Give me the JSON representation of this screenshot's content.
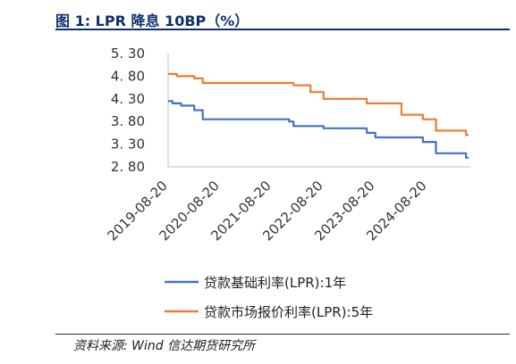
{
  "title": "图 1:  LPR 降息 10BP（%）",
  "source": "资料来源:    Wind  信达期货研究所",
  "chart_data": {
    "type": "line",
    "title": "LPR 降息 10BP（%）",
    "xlabel": "",
    "ylabel": "",
    "ylim": [
      2.8,
      5.3
    ],
    "yticks": [
      2.8,
      3.3,
      3.8,
      4.3,
      4.8,
      5.3
    ],
    "ytick_labels": [
      "2. 80",
      "3. 30",
      "3. 80",
      "4. 30",
      "4. 80",
      "5. 30"
    ],
    "xlim": [
      "2019-08-20",
      "2025-06-20"
    ],
    "xtick_labels": [
      "2019-08-20",
      "2020-08-20",
      "2021-08-20",
      "2022-08-20",
      "2023-08-20",
      "2024-08-20"
    ],
    "grid": false,
    "legend_position": "bottom",
    "series": [
      {
        "name": "贷款基础利率(LPR):1年",
        "color": "#4472C4",
        "points": [
          [
            "2019-08-20",
            4.25
          ],
          [
            "2019-09-20",
            4.2
          ],
          [
            "2019-11-20",
            4.15
          ],
          [
            "2020-02-20",
            4.05
          ],
          [
            "2020-04-20",
            3.85
          ],
          [
            "2021-12-20",
            3.8
          ],
          [
            "2022-01-20",
            3.7
          ],
          [
            "2022-08-20",
            3.65
          ],
          [
            "2023-06-20",
            3.55
          ],
          [
            "2023-08-20",
            3.45
          ],
          [
            "2024-07-20",
            3.35
          ],
          [
            "2024-10-20",
            3.1
          ],
          [
            "2025-05-20",
            3.0
          ]
        ]
      },
      {
        "name": "贷款市场报价利率(LPR):5年",
        "color": "#ED7D31",
        "points": [
          [
            "2019-08-20",
            4.85
          ],
          [
            "2019-10-20",
            4.8
          ],
          [
            "2020-02-20",
            4.75
          ],
          [
            "2020-04-20",
            4.65
          ],
          [
            "2022-01-20",
            4.6
          ],
          [
            "2022-05-20",
            4.45
          ],
          [
            "2022-08-20",
            4.3
          ],
          [
            "2023-06-20",
            4.2
          ],
          [
            "2024-02-20",
            3.95
          ],
          [
            "2024-07-20",
            3.85
          ],
          [
            "2024-10-20",
            3.6
          ],
          [
            "2025-05-20",
            3.5
          ]
        ]
      }
    ]
  }
}
